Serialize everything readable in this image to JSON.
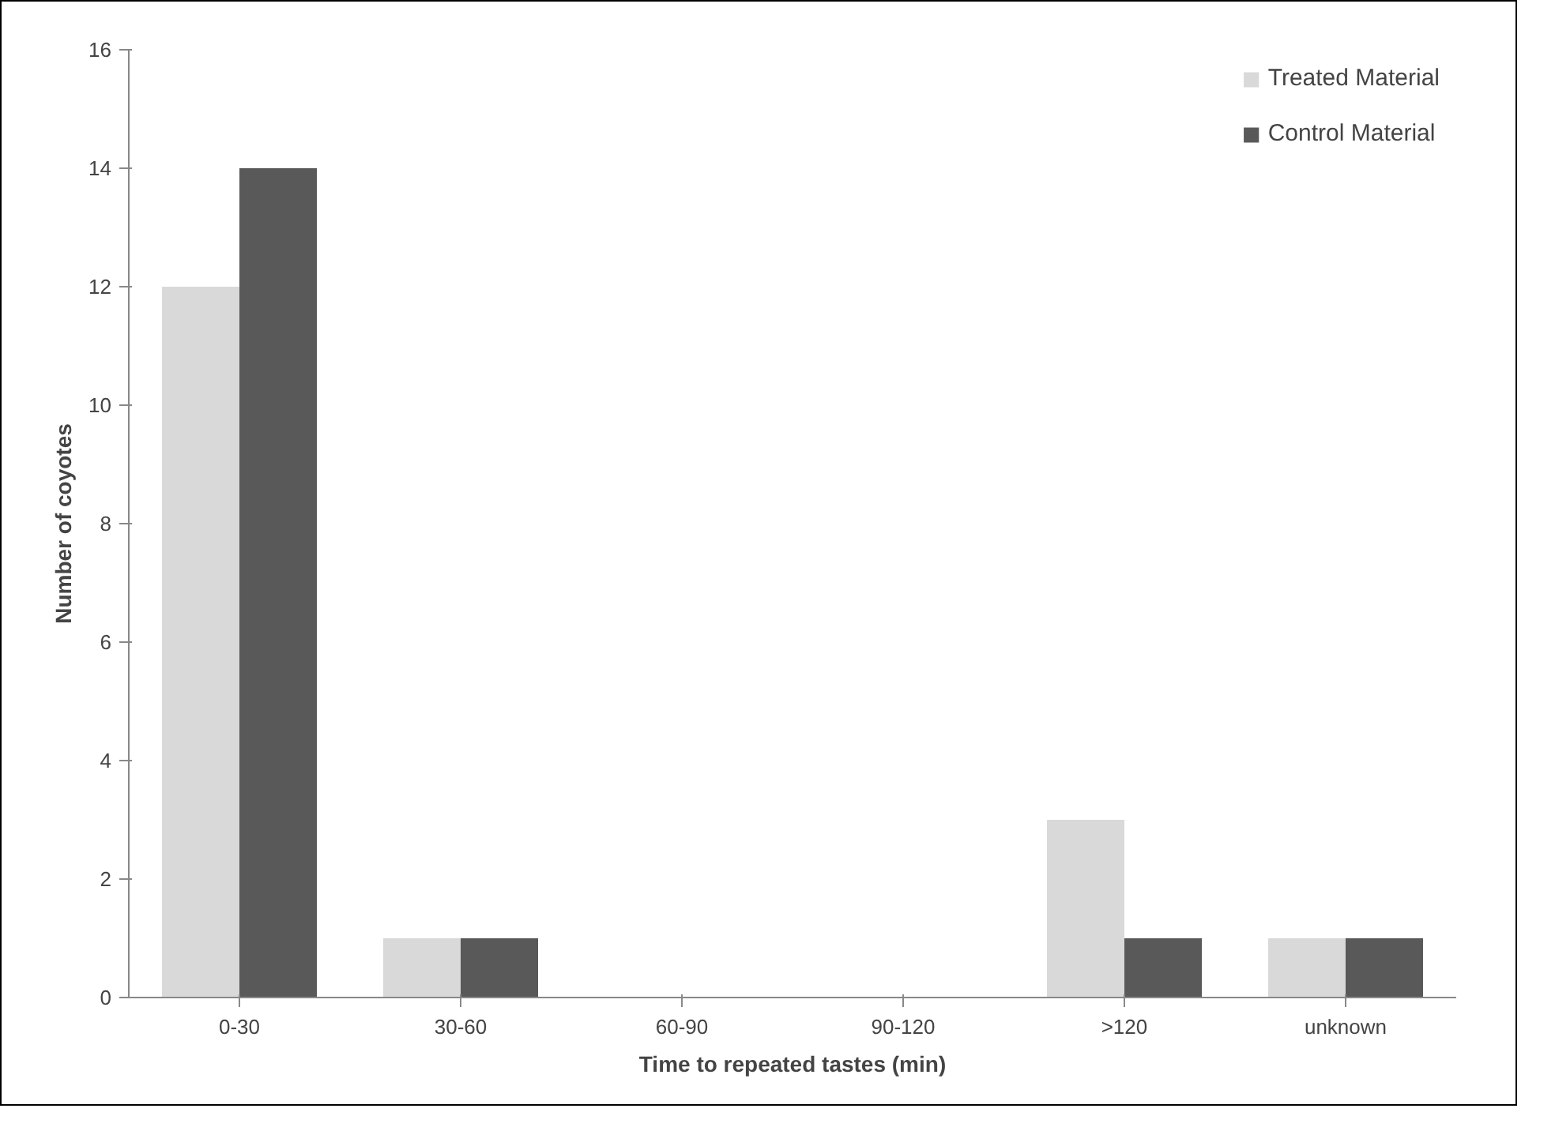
{
  "chart_data": {
    "type": "bar",
    "xlabel": "Time to repeated tastes (min)",
    "ylabel": "Number of coyotes",
    "categories": [
      "0-30",
      "30-60",
      "60-90",
      "90-120",
      ">120",
      "unknown"
    ],
    "series": [
      {
        "name": "Treated Material",
        "color": "#d9d9d9",
        "values": [
          12,
          1,
          0,
          0,
          3,
          1
        ]
      },
      {
        "name": "Control Material",
        "color": "#595959",
        "values": [
          14,
          1,
          0,
          0,
          1,
          1
        ]
      }
    ],
    "ylim": [
      0,
      16
    ],
    "yticks": [
      0,
      2,
      4,
      6,
      8,
      10,
      12,
      14,
      16
    ],
    "grid": false,
    "legend": "top right"
  }
}
